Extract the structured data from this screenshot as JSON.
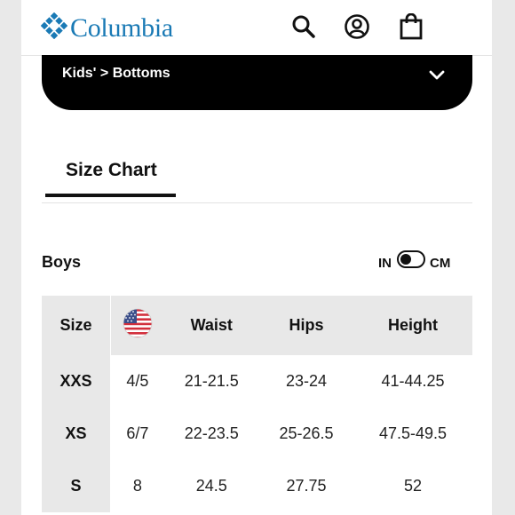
{
  "header": {
    "brand": "Columbia",
    "icons": [
      "search-icon",
      "account-icon",
      "bag-icon"
    ]
  },
  "category_dropdown": {
    "label": "Kids' > Bottoms"
  },
  "tabs": [
    {
      "label": "Size Chart",
      "active": true
    }
  ],
  "size_group": {
    "title": "Boys",
    "unit_left": "IN",
    "unit_right": "CM",
    "selected_unit": "IN"
  },
  "size_table": {
    "columns": [
      "Size",
      "US flag",
      "Waist",
      "Hips",
      "Height"
    ],
    "rows": [
      {
        "size": "XXS",
        "us": "4/5",
        "waist": "21-21.5",
        "hips": "23-24",
        "height": "41-44.25"
      },
      {
        "size": "XS",
        "us": "6/7",
        "waist": "22-23.5",
        "hips": "25-26.5",
        "height": "47.5-49.5"
      },
      {
        "size": "S",
        "us": "8",
        "waist": "24.5",
        "hips": "27.75",
        "height": "52"
      }
    ]
  },
  "colors": {
    "brand_blue": "#1a7ab5",
    "dark": "#000000",
    "header_cell_bg": "#e8e8e8"
  }
}
